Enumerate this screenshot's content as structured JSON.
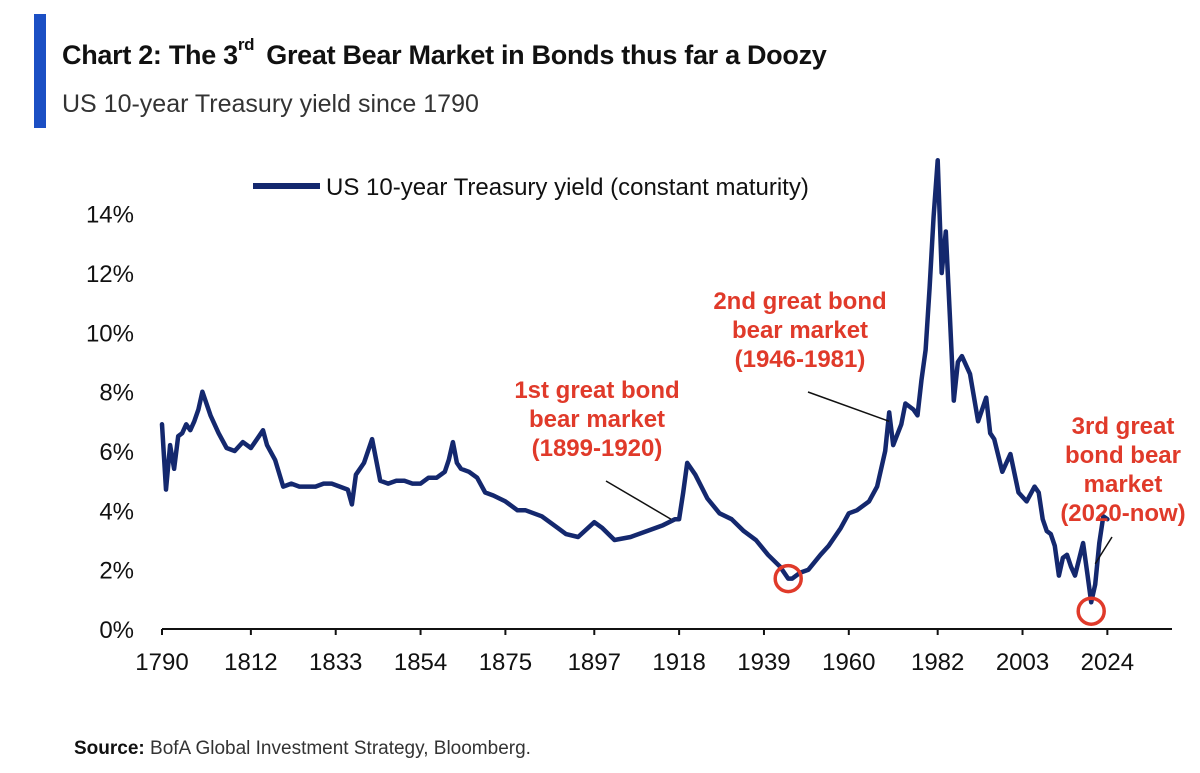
{
  "header": {
    "title_pre": "Chart 2: The 3",
    "title_sup": "rd",
    "title_post": "Great Bear Market in Bonds thus far a Doozy",
    "subtitle": "US 10-year Treasury yield since 1790"
  },
  "footer": {
    "source_label": "Source:",
    "source_text": "BofA Global Investment Strategy, Bloomberg."
  },
  "colors": {
    "accent": "#1b4fc4",
    "line": "#14286e",
    "annotation": "#e03a2a"
  },
  "chart_data": {
    "type": "line",
    "title": "",
    "xlabel": "",
    "ylabel": "",
    "xlim": [
      1790,
      2040
    ],
    "ylim": [
      0,
      15
    ],
    "y_ticks": [
      0,
      2,
      4,
      6,
      8,
      10,
      12,
      14
    ],
    "y_tick_labels": [
      "0%",
      "2%",
      "4%",
      "6%",
      "8%",
      "10%",
      "12%",
      "14%"
    ],
    "x_tick_labels": [
      "1790",
      "1812",
      "1833",
      "1854",
      "1875",
      "1897",
      "1918",
      "1939",
      "1960",
      "1982",
      "2003",
      "2024"
    ],
    "grid": false,
    "legend": {
      "position": "top-left",
      "entries": [
        "US 10-year Treasury yield (constant maturity)"
      ]
    },
    "series": [
      {
        "name": "US 10-year Treasury yield (constant maturity)",
        "x": [
          1790,
          1791,
          1792,
          1793,
          1794,
          1795,
          1796,
          1797,
          1798,
          1799,
          1800,
          1802,
          1804,
          1806,
          1808,
          1810,
          1812,
          1814,
          1815,
          1816,
          1818,
          1820,
          1822,
          1824,
          1826,
          1828,
          1830,
          1832,
          1834,
          1836,
          1837,
          1838,
          1840,
          1842,
          1844,
          1846,
          1848,
          1850,
          1852,
          1854,
          1856,
          1858,
          1860,
          1861,
          1862,
          1863,
          1864,
          1866,
          1868,
          1870,
          1872,
          1875,
          1878,
          1880,
          1884,
          1888,
          1890,
          1893,
          1897,
          1899,
          1902,
          1906,
          1910,
          1914,
          1917,
          1918,
          1919,
          1920,
          1922,
          1925,
          1928,
          1931,
          1934,
          1937,
          1940,
          1943,
          1945,
          1946,
          1948,
          1950,
          1953,
          1955,
          1958,
          1960,
          1962,
          1965,
          1967,
          1969,
          1970,
          1971,
          1973,
          1974,
          1976,
          1977,
          1978,
          1979,
          1980,
          1981,
          1982,
          1983,
          1984,
          1985,
          1986,
          1987,
          1988,
          1990,
          1992,
          1994,
          1995,
          1996,
          1998,
          2000,
          2002,
          2004,
          2006,
          2007,
          2008,
          2009,
          2010,
          2011,
          2012,
          2013,
          2014,
          2015,
          2016,
          2018,
          2019,
          2020,
          2021,
          2022,
          2023,
          2024
        ],
        "values": [
          6.9,
          4.7,
          6.2,
          5.4,
          6.5,
          6.6,
          6.9,
          6.7,
          7.0,
          7.4,
          8.0,
          7.2,
          6.6,
          6.1,
          6.0,
          6.3,
          6.1,
          6.5,
          6.7,
          6.2,
          5.7,
          4.8,
          4.9,
          4.8,
          4.8,
          4.8,
          4.9,
          4.9,
          4.8,
          4.7,
          4.2,
          5.2,
          5.6,
          6.4,
          5.0,
          4.9,
          5.0,
          5.0,
          4.9,
          4.9,
          5.1,
          5.1,
          5.3,
          5.7,
          6.3,
          5.6,
          5.4,
          5.3,
          5.1,
          4.6,
          4.5,
          4.3,
          4.0,
          4.0,
          3.8,
          3.4,
          3.2,
          3.1,
          3.6,
          3.4,
          3.0,
          3.1,
          3.3,
          3.5,
          3.7,
          3.7,
          4.6,
          5.6,
          5.2,
          4.4,
          3.9,
          3.7,
          3.3,
          3.0,
          2.5,
          2.1,
          1.7,
          1.7,
          1.9,
          2.0,
          2.5,
          2.8,
          3.4,
          3.9,
          4.0,
          4.3,
          4.8,
          6.0,
          7.3,
          6.2,
          6.9,
          7.6,
          7.4,
          7.2,
          8.4,
          9.4,
          11.5,
          13.9,
          15.8,
          12.0,
          13.4,
          10.6,
          7.7,
          9.0,
          9.2,
          8.6,
          7.0,
          7.8,
          6.6,
          6.4,
          5.3,
          5.9,
          4.6,
          4.3,
          4.8,
          4.6,
          3.7,
          3.3,
          3.2,
          2.8,
          1.8,
          2.4,
          2.5,
          2.1,
          1.8,
          2.9,
          1.9,
          0.9,
          1.5,
          2.9,
          3.8,
          3.7
        ]
      }
    ],
    "annotations": [
      {
        "lines": [
          "1st great bond",
          "bear market",
          "(1899-1920)"
        ],
        "target_year": 1916,
        "target_value": 3.7
      },
      {
        "lines": [
          "2nd great bond",
          "bear market",
          "(1946-1981)"
        ],
        "target_year": 1970,
        "target_value": 7.0
      },
      {
        "lines": [
          "3rd great",
          "bond bear",
          "market",
          "(2020-now)"
        ],
        "target_year": 2021,
        "target_value": 2.2
      }
    ],
    "highlight_circles": [
      {
        "year": 1945,
        "value": 1.7
      },
      {
        "year": 2020,
        "value": 0.6
      }
    ]
  }
}
